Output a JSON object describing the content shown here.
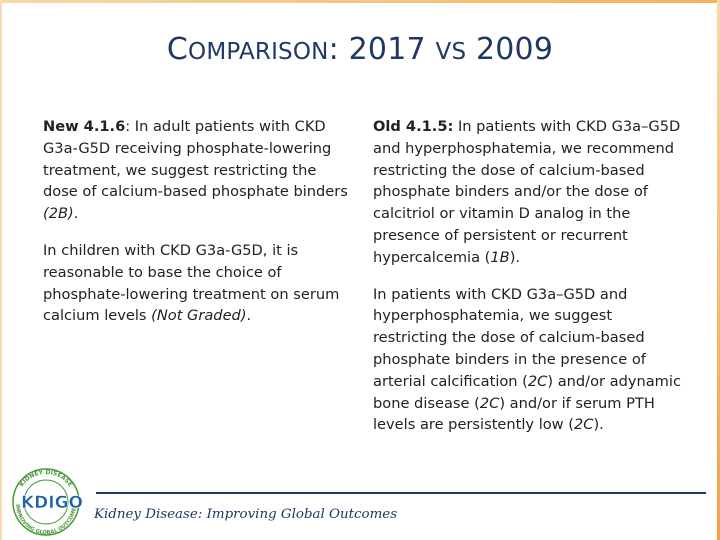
{
  "title": {
    "main": "C",
    "small": "OMPARISON",
    "rest": ": 2017 ",
    "vs": "VS",
    "year": " 2009"
  },
  "left_column": {
    "p1_label": "New 4.1.6",
    "p1_text": ": In adult patients with CKD G3a-G5D receiving phosphate-lowering treatment, we suggest restricting the dose of calcium-based phosphate binders ",
    "p1_grade": "(2B)",
    "p1_end": ".",
    "p2_text": "In children with CKD G3a-G5D, it is reasonable to base the choice of phosphate-lowering treatment on serum calcium levels ",
    "p2_grade": "(Not Graded)",
    "p2_end": "."
  },
  "right_column": {
    "p1_label": "Old 4.1.5:",
    "p1_text": " In patients with CKD G3a–G5D and hyperphosphatemia, we recommend restricting the dose of calcium-based phosphate binders and/or the dose of calcitriol or vitamin D analog in the presence of persistent or recurrent hypercalcemia (",
    "p1_grade": "1B",
    "p1_end": ").",
    "p2_a": "In patients with CKD G3a–G5D and hyperphosphatemia, we suggest restricting the dose of calcium-based phosphate binders in the presence of arterial calcification (",
    "p2_g1": "2C",
    "p2_b": ") and/or adynamic bone disease (",
    "p2_g2": "2C",
    "p2_c": ") and/or if serum PTH levels are persistently low (",
    "p2_g3": "2C",
    "p2_d": ")."
  },
  "footer": {
    "tagline": "Kidney Disease: Improving Global Outcomes",
    "logo_text": "KDIGO",
    "logo_ring_top": "KIDNEY DISEASE",
    "logo_ring_bottom": "IMPROVING GLOBAL OUTCOMES"
  },
  "colors": {
    "title": "#1f3864",
    "logo_blue": "#1f5fa8",
    "logo_green": "#4a9a3a",
    "accent_orange": "#f3b25c"
  }
}
